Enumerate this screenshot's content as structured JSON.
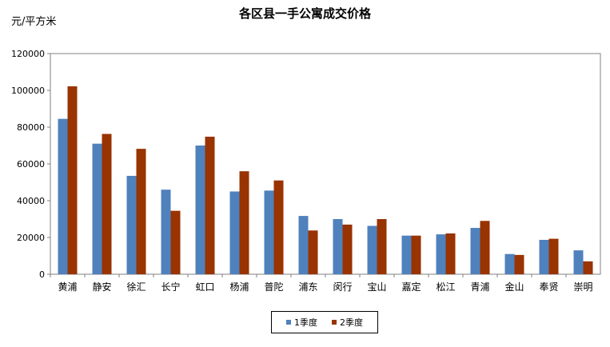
{
  "chart_data": {
    "type": "bar",
    "title": "各区县一手公寓成交价格",
    "ylabel": "元/平方米",
    "xlabel": "",
    "ylim": [
      0,
      120000
    ],
    "yticks": [
      "0",
      "20000",
      "40000",
      "60000",
      "80000",
      "100000",
      "120000"
    ],
    "categories": [
      "黄浦",
      "静安",
      "徐汇",
      "长宁",
      "虹口",
      "杨浦",
      "普陀",
      "浦东",
      "闵行",
      "宝山",
      "嘉定",
      "松江",
      "青浦",
      "金山",
      "奉贤",
      "崇明"
    ],
    "series": [
      {
        "name": "1季度",
        "color": "#4F81BD",
        "values": [
          84500,
          71000,
          53500,
          46000,
          70000,
          45000,
          45500,
          31700,
          30000,
          26300,
          21000,
          21700,
          25200,
          11000,
          18700,
          13000
        ]
      },
      {
        "name": "2季度",
        "color": "#993300",
        "values": [
          102200,
          76300,
          68200,
          34500,
          74800,
          56000,
          51000,
          23800,
          27000,
          30000,
          21000,
          22200,
          29000,
          10500,
          19300,
          7000
        ]
      }
    ],
    "grid": false,
    "legend": "bottom"
  }
}
